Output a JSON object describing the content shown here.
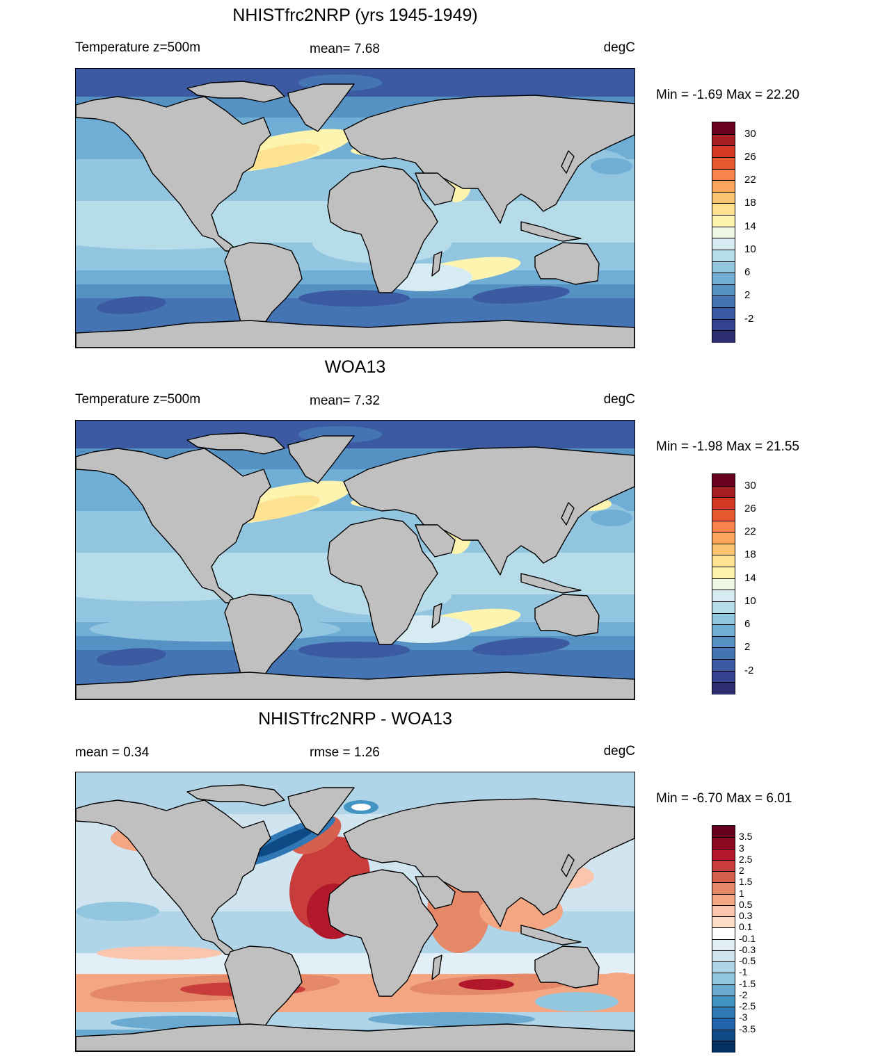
{
  "panels": [
    {
      "title": "NHISTfrc2NRP (yrs 1945-1949)",
      "left_label": "Temperature z=500m",
      "mid_label": "mean=   7.68",
      "right_label": "degC",
      "minmax": "Min =  -1.69 Max =  22.20",
      "palette": "temp",
      "colorbar_labels": [
        "30",
        "26",
        "22",
        "18",
        "14",
        "10",
        "6",
        "2",
        "-2"
      ]
    },
    {
      "title": "WOA13",
      "left_label": "Temperature z=500m",
      "mid_label": "mean=   7.32",
      "right_label": "degC",
      "minmax": "Min =  -1.98 Max =  21.55",
      "palette": "temp",
      "colorbar_labels": [
        "30",
        "26",
        "22",
        "18",
        "14",
        "10",
        "6",
        "2",
        "-2"
      ]
    },
    {
      "title": "NHISTfrc2NRP - WOA13",
      "left_label": "mean =   0.34",
      "mid_label": "rmse =   1.26",
      "right_label": "degC",
      "minmax": "Min =  -6.70 Max =   6.01",
      "palette": "diff",
      "colorbar_labels": [
        "3.5",
        "3",
        "2.5",
        "2",
        "1.5",
        "1",
        "0.5",
        "0.3",
        "0.1",
        "-0.1",
        "-0.3",
        "-0.5",
        "-1",
        "-1.5",
        "-2",
        "-2.5",
        "-3",
        "-3.5"
      ]
    }
  ],
  "colors": {
    "land": "#c0c0c0",
    "temp_palette": [
      "#6a0020",
      "#a51c22",
      "#d23a25",
      "#e5582f",
      "#f7844c",
      "#fba55e",
      "#fcc475",
      "#fde292",
      "#fdf4b0",
      "#eef6e4",
      "#d6ecf2",
      "#b6dcea",
      "#92c6e0",
      "#71aed5",
      "#5691c4",
      "#4574b4",
      "#3b5aa2",
      "#34438f",
      "#2c2d6e"
    ],
    "diff_palette": [
      "#67001f",
      "#8a0a22",
      "#b2182b",
      "#c83c3c",
      "#d6604d",
      "#e48868",
      "#f4a582",
      "#f9c6ad",
      "#fddbc7",
      "#ffffff",
      "#e2eff6",
      "#d1e5f0",
      "#b0d4e8",
      "#92c5de",
      "#6aaad0",
      "#4393c3",
      "#2f78b5",
      "#2166ac",
      "#0e4a85",
      "#053061"
    ]
  }
}
